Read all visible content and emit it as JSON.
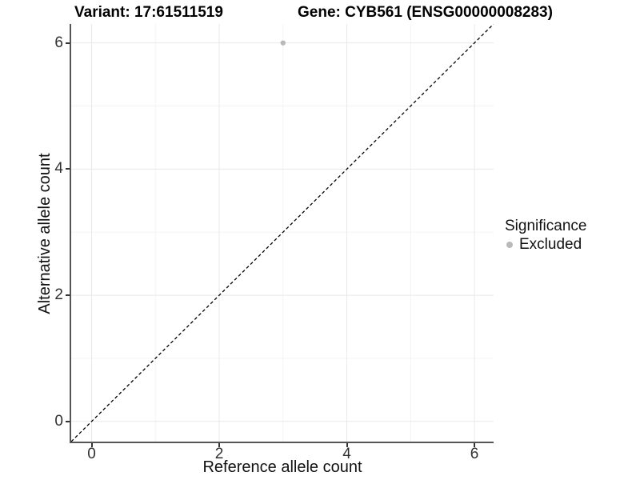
{
  "chart_data": {
    "type": "scatter",
    "title_left": "Variant: 17:61511519",
    "title_right": "Gene: CYB561 (ENSG00000008283)",
    "xlabel": "Reference allele count",
    "ylabel": "Alternative allele count",
    "xlim": [
      -0.32,
      6.3
    ],
    "ylim": [
      -0.32,
      6.3
    ],
    "xticks": [
      0,
      2,
      4,
      6
    ],
    "yticks": [
      0,
      2,
      4,
      6
    ],
    "x_minor_ticks": [
      1,
      3,
      5
    ],
    "y_minor_ticks": [
      1,
      3,
      5
    ],
    "grid": true,
    "legend_position": "right",
    "reference_line": {
      "type": "identity",
      "slope": 1,
      "intercept": 0,
      "style": "dashed",
      "color": "#000000"
    },
    "series": [
      {
        "name": "Excluded",
        "marker": "circle",
        "color": "#b9b9b9",
        "points": [
          {
            "x": 3,
            "y": 6
          }
        ]
      }
    ],
    "legend": {
      "title": "Significance",
      "items": [
        {
          "label": "Excluded",
          "color": "#b9b9b9",
          "marker": "circle"
        }
      ]
    }
  },
  "colors": {
    "background": "#ffffff",
    "grid_major": "#e8e8e8",
    "grid_minor": "#f3f3f3",
    "axis_line": "#555555",
    "tick_mark": "#333333",
    "tick_text": "#303030",
    "point": "#b9b9b9",
    "reference_line": "#000000"
  }
}
